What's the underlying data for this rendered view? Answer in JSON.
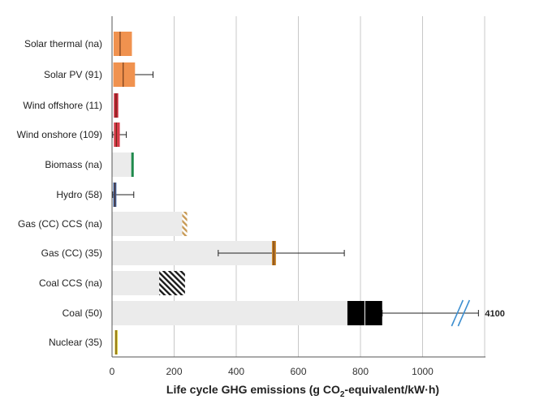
{
  "chart_data": {
    "type": "bar",
    "orientation": "horizontal",
    "xlabel_parts": {
      "before": "Life cycle GHG emissions (g CO",
      "sub": "2",
      "after": "-equivalent/kW·h)"
    },
    "xlim": [
      0,
      1200
    ],
    "xticks": [
      "0",
      "200",
      "400",
      "600",
      "800",
      "1000"
    ],
    "grid": "vertical",
    "categories": [
      "Solar thermal (na)",
      "Solar PV (91)",
      "Wind offshore (11)",
      "Wind onshore (109)",
      "Biomass (na)",
      "Hydro (58)",
      "Gas (CC) CCS (na)",
      "Gas (CC) (35)",
      "Coal CCS (na)",
      "Coal (50)",
      "Nuclear (35)"
    ],
    "rows": [
      {
        "label": "Solar thermal (na)",
        "range_max": null,
        "box": [
          5,
          64
        ],
        "median": 26,
        "color": "#f0924f",
        "style": "box"
      },
      {
        "label": "Solar PV (91)",
        "range_max": null,
        "box": [
          4,
          74
        ],
        "median": 36,
        "whisker": [
          46,
          132
        ],
        "color": "#f0924f",
        "style": "box"
      },
      {
        "label": "Wind offshore (11)",
        "range_max": null,
        "box": [
          6,
          20
        ],
        "median": 13,
        "color": "#c8283a",
        "style": "box"
      },
      {
        "label": "Wind onshore (109)",
        "range_max": null,
        "box": [
          6,
          25
        ],
        "median": 14,
        "whisker": [
          2,
          46
        ],
        "color": "#d63a48",
        "style": "box"
      },
      {
        "label": "Biomass (na)",
        "range_max": 68,
        "value": 66,
        "color": "#1f8a4c",
        "style": "line"
      },
      {
        "label": "Hydro (58)",
        "range_max": null,
        "box": [
          4,
          14
        ],
        "median": 9,
        "whisker": [
          2,
          70
        ],
        "color": "#3b5f9c",
        "style": "box"
      },
      {
        "label": "Gas (CC) CCS (na)",
        "range_max": 230,
        "box": [
          226,
          242
        ],
        "color": "#c8a060",
        "style": "hatch"
      },
      {
        "label": "Gas (CC) (35)",
        "range_max": 522,
        "box": [
          515,
          528
        ],
        "median": 521,
        "whisker": [
          342,
          748
        ],
        "color": "#c8852d",
        "style": "box"
      },
      {
        "label": "Coal CCS (na)",
        "range_max": 160,
        "box": [
          152,
          235
        ],
        "color": "#222222",
        "style": "hatch"
      },
      {
        "label": "Coal (50)",
        "range_max": 758,
        "box": [
          758,
          870
        ],
        "median": 814,
        "whisker": [
          870,
          1180
        ],
        "color": "#000000",
        "style": "box",
        "whisker_label": "4100",
        "axis_break": true
      },
      {
        "label": "Nuclear (35)",
        "range_max": null,
        "box": [
          9,
          18
        ],
        "median": 13,
        "color": "#d6cc2a",
        "style": "box"
      }
    ]
  }
}
